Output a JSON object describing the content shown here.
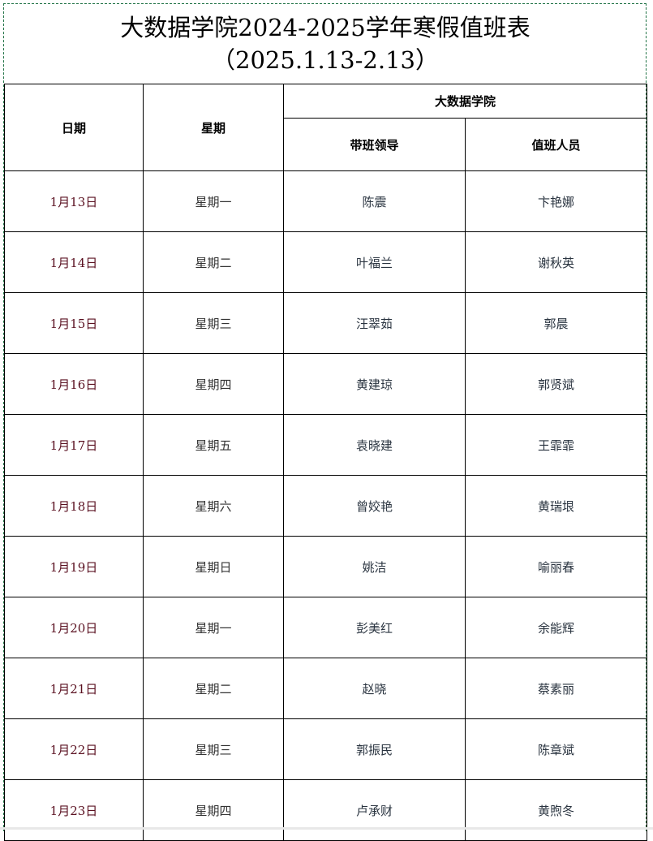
{
  "title": "大数据学院2024-2025学年寒假值班表",
  "subtitle": "（2025.1.13-2.13）",
  "headers": {
    "date": "日期",
    "weekday": "星期",
    "group": "大数据学院",
    "leader": "带班领导",
    "staff": "值班人员"
  },
  "rows": [
    {
      "date": "1月13日",
      "weekday": "星期一",
      "leader": "陈震",
      "staff": "卞艳娜"
    },
    {
      "date": "1月14日",
      "weekday": "星期二",
      "leader": "叶福兰",
      "staff": "谢秋英"
    },
    {
      "date": "1月15日",
      "weekday": "星期三",
      "leader": "汪翠茹",
      "staff": "郭晨"
    },
    {
      "date": "1月16日",
      "weekday": "星期四",
      "leader": "黄建琼",
      "staff": "郭贤斌"
    },
    {
      "date": "1月17日",
      "weekday": "星期五",
      "leader": "袁晓建",
      "staff": "王霏霏"
    },
    {
      "date": "1月18日",
      "weekday": "星期六",
      "leader": "曾姣艳",
      "staff": "黄瑞垠"
    },
    {
      "date": "1月19日",
      "weekday": "星期日",
      "leader": "姚洁",
      "staff": "喻丽春"
    },
    {
      "date": "1月20日",
      "weekday": "星期一",
      "leader": "彭美红",
      "staff": "余能辉"
    },
    {
      "date": "1月21日",
      "weekday": "星期二",
      "leader": "赵晓",
      "staff": "蔡素丽"
    },
    {
      "date": "1月22日",
      "weekday": "星期三",
      "leader": "郭振民",
      "staff": "陈章斌"
    },
    {
      "date": "1月23日",
      "weekday": "星期四",
      "leader": "卢承财",
      "staff": "黄煦冬"
    }
  ]
}
